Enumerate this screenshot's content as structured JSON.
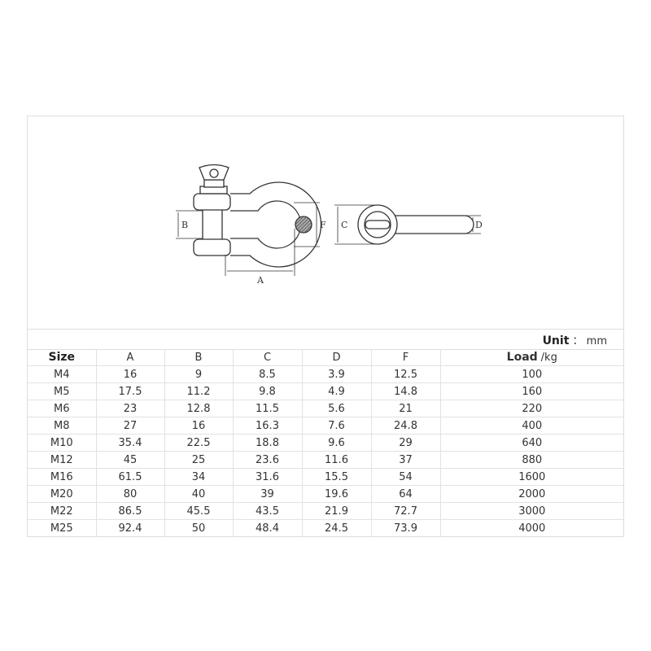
{
  "diagram": {
    "labels": {
      "a": "A",
      "b": "B",
      "c": "C",
      "d": "D",
      "f": "F"
    }
  },
  "unit": {
    "label": "Unit",
    "value": "： mm"
  },
  "table": {
    "headers": [
      "Size",
      "A",
      "B",
      "C",
      "D",
      "F",
      "Load"
    ],
    "load_unit": "/kg",
    "rows": [
      [
        "M4",
        "16",
        "9",
        "8.5",
        "3.9",
        "12.5",
        "100"
      ],
      [
        "M5",
        "17.5",
        "11.2",
        "9.8",
        "4.9",
        "14.8",
        "160"
      ],
      [
        "M6",
        "23",
        "12.8",
        "11.5",
        "5.6",
        "21",
        "220"
      ],
      [
        "M8",
        "27",
        "16",
        "16.3",
        "7.6",
        "24.8",
        "400"
      ],
      [
        "M10",
        "35.4",
        "22.5",
        "18.8",
        "9.6",
        "29",
        "640"
      ],
      [
        "M12",
        "45",
        "25",
        "23.6",
        "11.6",
        "37",
        "880"
      ],
      [
        "M16",
        "61.5",
        "34",
        "31.6",
        "15.5",
        "54",
        "1600"
      ],
      [
        "M20",
        "80",
        "40",
        "39",
        "19.6",
        "64",
        "2000"
      ],
      [
        "M22",
        "86.5",
        "45.5",
        "43.5",
        "21.9",
        "72.7",
        "3000"
      ],
      [
        "M25",
        "92.4",
        "50",
        "48.4",
        "24.5",
        "73.9",
        "4000"
      ]
    ]
  }
}
